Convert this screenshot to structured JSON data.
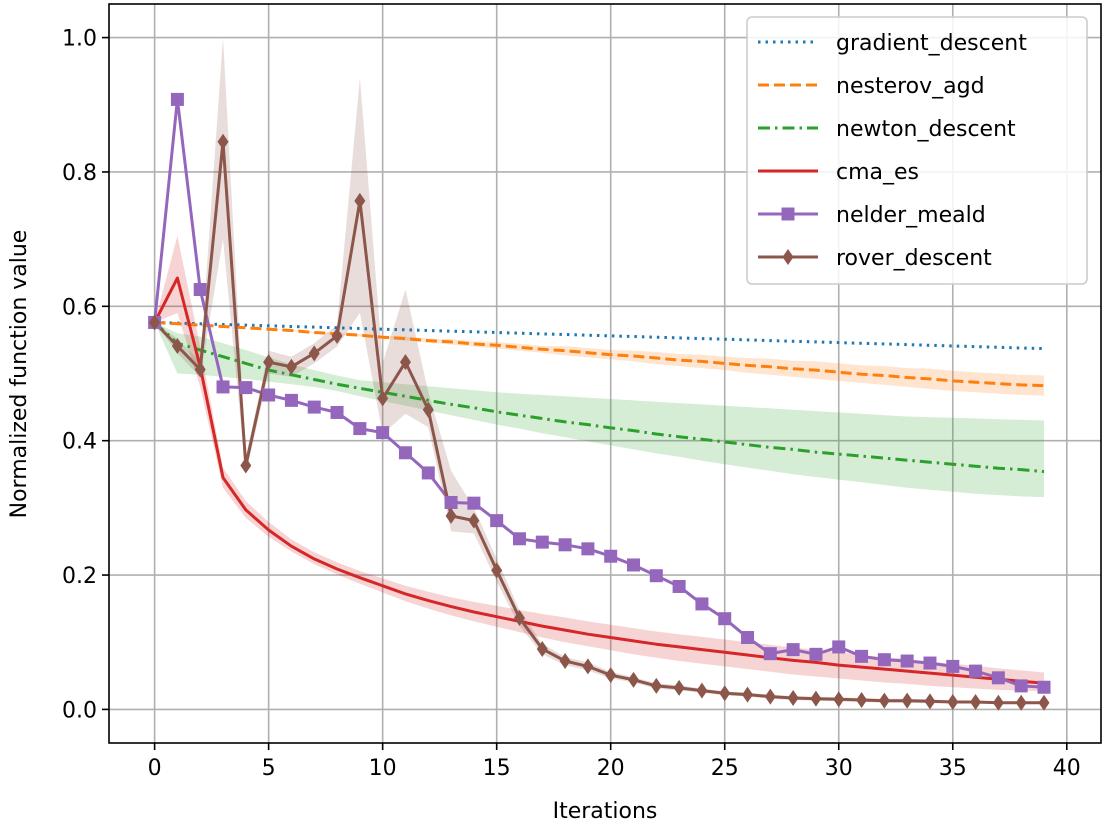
{
  "chart_data": {
    "type": "line",
    "title": "",
    "xlabel": "Iterations",
    "ylabel": "Normalized function value",
    "xlim": [
      -2,
      41.5
    ],
    "ylim": [
      -0.05,
      1.05
    ],
    "xticks": [
      0,
      5,
      10,
      15,
      20,
      25,
      30,
      35,
      40
    ],
    "yticks": [
      0.0,
      0.2,
      0.4,
      0.6,
      0.8,
      1.0
    ],
    "xtick_labels": [
      "0",
      "5",
      "10",
      "15",
      "20",
      "25",
      "30",
      "35",
      "40"
    ],
    "ytick_labels": [
      "0.0",
      "0.2",
      "0.4",
      "0.6",
      "0.8",
      "1.0"
    ],
    "grid": true,
    "legend_position": "top-right",
    "x": [
      0,
      1,
      2,
      3,
      4,
      5,
      6,
      7,
      8,
      9,
      10,
      11,
      12,
      13,
      14,
      15,
      16,
      17,
      18,
      19,
      20,
      21,
      22,
      23,
      24,
      25,
      26,
      27,
      28,
      29,
      30,
      31,
      32,
      33,
      34,
      35,
      36,
      37,
      38,
      39
    ],
    "series": [
      {
        "name": "gradient_descent",
        "color": "#1f77b4",
        "linestyle": "dotted",
        "marker": "none",
        "values": [
          0.576,
          0.575,
          0.574,
          0.573,
          0.572,
          0.571,
          0.57,
          0.569,
          0.568,
          0.567,
          0.566,
          0.565,
          0.564,
          0.563,
          0.562,
          0.561,
          0.56,
          0.559,
          0.558,
          0.557,
          0.556,
          0.555,
          0.554,
          0.553,
          0.552,
          0.551,
          0.55,
          0.549,
          0.548,
          0.547,
          0.546,
          0.545,
          0.544,
          0.543,
          0.542,
          0.541,
          0.54,
          0.539,
          0.538,
          0.537
        ]
      },
      {
        "name": "nesterov_agd",
        "color": "#ff7f0e",
        "linestyle": "dashed",
        "marker": "none",
        "values": [
          0.576,
          0.574,
          0.572,
          0.57,
          0.568,
          0.566,
          0.564,
          0.561,
          0.559,
          0.557,
          0.554,
          0.552,
          0.549,
          0.547,
          0.544,
          0.542,
          0.539,
          0.536,
          0.534,
          0.531,
          0.528,
          0.526,
          0.523,
          0.52,
          0.518,
          0.515,
          0.512,
          0.51,
          0.507,
          0.505,
          0.502,
          0.499,
          0.497,
          0.494,
          0.492,
          0.489,
          0.487,
          0.485,
          0.483,
          0.482
        ],
        "band_lower": [
          0.576,
          0.574,
          0.572,
          0.57,
          0.568,
          0.566,
          0.563,
          0.56,
          0.558,
          0.555,
          0.552,
          0.549,
          0.546,
          0.543,
          0.54,
          0.537,
          0.534,
          0.531,
          0.527,
          0.524,
          0.521,
          0.518,
          0.514,
          0.511,
          0.508,
          0.505,
          0.501,
          0.498,
          0.495,
          0.492,
          0.489,
          0.486,
          0.483,
          0.48,
          0.477,
          0.474,
          0.472,
          0.47,
          0.468,
          0.467
        ],
        "band_upper": [
          0.576,
          0.574,
          0.572,
          0.57,
          0.568,
          0.566,
          0.565,
          0.562,
          0.56,
          0.559,
          0.556,
          0.555,
          0.552,
          0.551,
          0.548,
          0.547,
          0.544,
          0.541,
          0.541,
          0.538,
          0.535,
          0.534,
          0.532,
          0.529,
          0.528,
          0.525,
          0.523,
          0.522,
          0.519,
          0.518,
          0.515,
          0.512,
          0.511,
          0.508,
          0.507,
          0.504,
          0.502,
          0.5,
          0.498,
          0.497
        ]
      },
      {
        "name": "newton_descent",
        "color": "#2ca02c",
        "linestyle": "dashdot",
        "marker": "none",
        "values": [
          0.576,
          0.545,
          0.535,
          0.525,
          0.515,
          0.505,
          0.498,
          0.491,
          0.484,
          0.478,
          0.472,
          0.466,
          0.46,
          0.454,
          0.449,
          0.443,
          0.438,
          0.433,
          0.428,
          0.424,
          0.419,
          0.415,
          0.41,
          0.406,
          0.402,
          0.398,
          0.394,
          0.39,
          0.387,
          0.383,
          0.38,
          0.377,
          0.374,
          0.371,
          0.368,
          0.365,
          0.362,
          0.359,
          0.357,
          0.354
        ],
        "band_lower": [
          0.576,
          0.5,
          0.498,
          0.495,
          0.492,
          0.488,
          0.484,
          0.48,
          0.474,
          0.466,
          0.459,
          0.452,
          0.445,
          0.438,
          0.431,
          0.424,
          0.418,
          0.411,
          0.405,
          0.399,
          0.393,
          0.387,
          0.381,
          0.376,
          0.37,
          0.365,
          0.36,
          0.355,
          0.35,
          0.346,
          0.342,
          0.338,
          0.334,
          0.33,
          0.327,
          0.324,
          0.321,
          0.319,
          0.317,
          0.316
        ],
        "band_upper": [
          0.576,
          0.56,
          0.555,
          0.545,
          0.535,
          0.524,
          0.514,
          0.505,
          0.497,
          0.49,
          0.487,
          0.484,
          0.481,
          0.478,
          0.475,
          0.472,
          0.47,
          0.468,
          0.466,
          0.464,
          0.462,
          0.46,
          0.458,
          0.456,
          0.454,
          0.452,
          0.45,
          0.448,
          0.446,
          0.444,
          0.442,
          0.44,
          0.438,
          0.436,
          0.435,
          0.434,
          0.433,
          0.432,
          0.431,
          0.43
        ]
      },
      {
        "name": "cma_es",
        "color": "#d62728",
        "linestyle": "solid",
        "marker": "none",
        "values": [
          0.576,
          0.642,
          0.51,
          0.345,
          0.297,
          0.267,
          0.243,
          0.224,
          0.209,
          0.196,
          0.184,
          0.172,
          0.162,
          0.153,
          0.145,
          0.138,
          0.131,
          0.124,
          0.118,
          0.112,
          0.107,
          0.102,
          0.097,
          0.093,
          0.089,
          0.085,
          0.081,
          0.077,
          0.073,
          0.07,
          0.066,
          0.063,
          0.06,
          0.057,
          0.054,
          0.051,
          0.048,
          0.045,
          0.042,
          0.039
        ],
        "band_lower": [
          0.576,
          0.59,
          0.48,
          0.33,
          0.285,
          0.257,
          0.235,
          0.216,
          0.201,
          0.187,
          0.174,
          0.161,
          0.15,
          0.14,
          0.131,
          0.123,
          0.115,
          0.107,
          0.1,
          0.094,
          0.088,
          0.082,
          0.077,
          0.072,
          0.068,
          0.064,
          0.06,
          0.056,
          0.052,
          0.049,
          0.046,
          0.043,
          0.04,
          0.038,
          0.035,
          0.033,
          0.031,
          0.029,
          0.028,
          0.027
        ],
        "band_upper": [
          0.576,
          0.705,
          0.54,
          0.36,
          0.31,
          0.279,
          0.253,
          0.234,
          0.219,
          0.206,
          0.195,
          0.184,
          0.175,
          0.167,
          0.16,
          0.154,
          0.148,
          0.142,
          0.137,
          0.131,
          0.126,
          0.121,
          0.116,
          0.112,
          0.108,
          0.104,
          0.1,
          0.096,
          0.092,
          0.089,
          0.085,
          0.081,
          0.078,
          0.075,
          0.071,
          0.068,
          0.065,
          0.061,
          0.058,
          0.055
        ]
      },
      {
        "name": "nelder_meald",
        "color": "#9467bd",
        "linestyle": "solid",
        "marker": "square",
        "values": [
          0.576,
          0.908,
          0.625,
          0.48,
          0.479,
          0.468,
          0.46,
          0.45,
          0.442,
          0.418,
          0.412,
          0.382,
          0.352,
          0.308,
          0.307,
          0.281,
          0.254,
          0.249,
          0.245,
          0.239,
          0.228,
          0.215,
          0.199,
          0.183,
          0.157,
          0.135,
          0.107,
          0.083,
          0.089,
          0.082,
          0.093,
          0.079,
          0.074,
          0.072,
          0.069,
          0.064,
          0.057,
          0.047,
          0.035,
          0.033
        ]
      },
      {
        "name": "rover_descent",
        "color": "#8c564b",
        "linestyle": "solid",
        "marker": "diamond",
        "values": [
          0.576,
          0.541,
          0.506,
          0.845,
          0.363,
          0.517,
          0.51,
          0.53,
          0.556,
          0.757,
          0.463,
          0.517,
          0.446,
          0.288,
          0.281,
          0.207,
          0.136,
          0.09,
          0.072,
          0.064,
          0.051,
          0.044,
          0.035,
          0.032,
          0.028,
          0.024,
          0.022,
          0.019,
          0.017,
          0.016,
          0.015,
          0.014,
          0.013,
          0.013,
          0.012,
          0.011,
          0.011,
          0.01,
          0.01,
          0.01
        ],
        "band_lower": [
          0.576,
          0.53,
          0.495,
          0.7,
          0.35,
          0.5,
          0.495,
          0.515,
          0.54,
          0.59,
          0.41,
          0.44,
          0.42,
          0.265,
          0.262,
          0.19,
          0.124,
          0.082,
          0.066,
          0.058,
          0.046,
          0.04,
          0.031,
          0.028,
          0.025,
          0.021,
          0.019,
          0.016,
          0.014,
          0.013,
          0.012,
          0.011,
          0.01,
          0.01,
          0.009,
          0.009,
          0.009,
          0.008,
          0.008,
          0.008
        ],
        "band_upper": [
          0.576,
          0.552,
          0.517,
          1.0,
          0.376,
          0.534,
          0.525,
          0.545,
          0.572,
          0.94,
          0.516,
          0.625,
          0.472,
          0.355,
          0.3,
          0.224,
          0.148,
          0.098,
          0.078,
          0.07,
          0.056,
          0.048,
          0.039,
          0.036,
          0.031,
          0.027,
          0.025,
          0.022,
          0.02,
          0.019,
          0.018,
          0.017,
          0.016,
          0.016,
          0.015,
          0.013,
          0.013,
          0.012,
          0.012,
          0.012
        ]
      }
    ]
  }
}
